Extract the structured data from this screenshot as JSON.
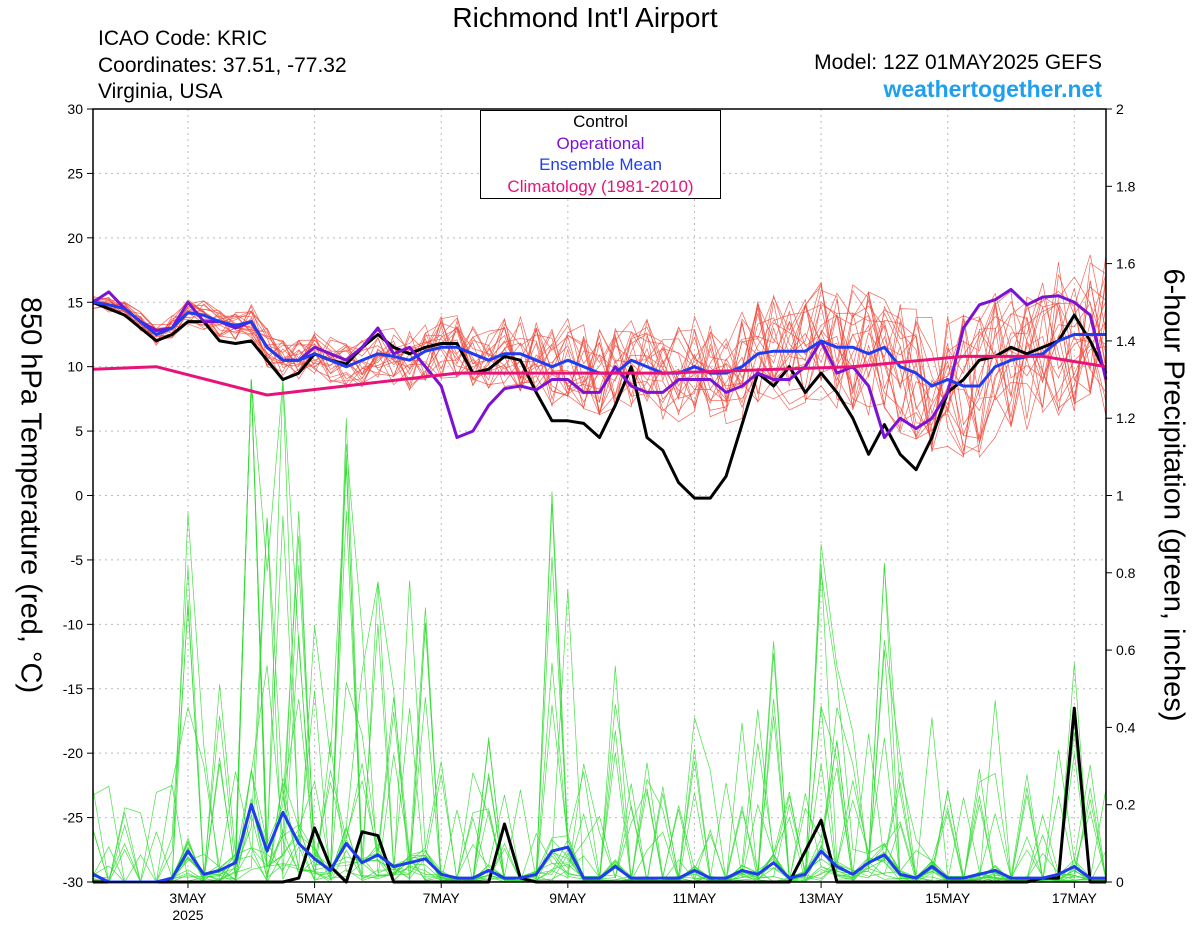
{
  "header": {
    "title": "Richmond Int'l Airport",
    "icao": "ICAO Code: KRIC",
    "coordinates": "Coordinates: 37.51, -77.32",
    "region": "Virginia, USA",
    "model": "Model: 12Z 01MAY2025 GEFS",
    "site": "weathertogether.net"
  },
  "colors": {
    "control": "#000000",
    "operational": "#7b12d4",
    "ensemble_mean": "#1f3cf0",
    "climatology": "#e8137a",
    "members_temp": "#f04a3c",
    "members_precip": "#33dd33",
    "site": "#1ea0ee"
  },
  "chart_data": {
    "type": "line",
    "ylabel_left": "850 hPa Temperature (red, °C)",
    "ylabel_right": "6-hour Precipitation (green, inches)",
    "ylim_left": [
      -30,
      30
    ],
    "ylim_right": [
      0,
      2
    ],
    "yticks_left": [
      30,
      25,
      20,
      15,
      10,
      5,
      0,
      -5,
      -10,
      -15,
      -20,
      -25,
      -30
    ],
    "yticks_right": [
      "2",
      "1.8",
      "1.6",
      "1.4",
      "1.2",
      "1",
      "0.8",
      "0.6",
      "0.4",
      "0.2",
      "0"
    ],
    "xlim_days": [
      1.5,
      17.5
    ],
    "xticks": [
      {
        "day": 3,
        "label": "3MAY",
        "sub": "2025"
      },
      {
        "day": 5,
        "label": "5MAY"
      },
      {
        "day": 7,
        "label": "7MAY"
      },
      {
        "day": 9,
        "label": "9MAY"
      },
      {
        "day": 11,
        "label": "11MAY"
      },
      {
        "day": 13,
        "label": "13MAY"
      },
      {
        "day": 15,
        "label": "15MAY"
      },
      {
        "day": 17,
        "label": "17MAY"
      }
    ],
    "grid": true,
    "legend_position": "top-center",
    "legend": [
      "Control",
      "Operational",
      "Ensemble Mean",
      "Climatology (1981-2010)"
    ],
    "temperature_series": [
      {
        "name": "Control",
        "x": [
          1.5,
          1.75,
          2,
          2.25,
          2.5,
          2.75,
          3,
          3.25,
          3.5,
          3.75,
          4,
          4.25,
          4.5,
          4.75,
          5,
          5.25,
          5.5,
          5.75,
          6,
          6.25,
          6.5,
          6.75,
          7,
          7.25,
          7.5,
          7.75,
          8,
          8.25,
          8.5,
          8.75,
          9,
          9.25,
          9.5,
          9.75,
          10,
          10.25,
          10.5,
          10.75,
          11,
          11.25,
          11.5,
          11.75,
          12,
          12.25,
          12.5,
          12.75,
          13,
          13.25,
          13.5,
          13.75,
          14,
          14.25,
          14.5,
          14.75,
          15,
          15.25,
          15.5,
          15.75,
          16,
          16.25,
          16.5,
          16.75,
          17,
          17.25,
          17.5
        ],
        "y": [
          15,
          14.5,
          14,
          13,
          12,
          12.5,
          13.5,
          13.5,
          12,
          11.8,
          12,
          10.5,
          9,
          9.5,
          11,
          10.5,
          10.2,
          11.5,
          12.5,
          11.5,
          11,
          11.5,
          11.8,
          11.8,
          9.5,
          9.8,
          10.8,
          10.5,
          8,
          5.8,
          5.8,
          5.6,
          4.5,
          7,
          10,
          4.5,
          3.5,
          1,
          -0.2,
          -0.2,
          1.5,
          5.5,
          9.5,
          8.5,
          10,
          8,
          9.5,
          8,
          6,
          3.2,
          5.5,
          3.2,
          2,
          4.5,
          8,
          9,
          10.5,
          10.8,
          11.5,
          11,
          11.5,
          12,
          14,
          12,
          9.5
        ]
      },
      {
        "name": "Operational",
        "x": [
          1.5,
          1.75,
          2,
          2.25,
          2.5,
          2.75,
          3,
          3.25,
          3.5,
          3.75,
          4,
          4.25,
          4.5,
          4.75,
          5,
          5.25,
          5.5,
          5.75,
          6,
          6.25,
          6.5,
          6.75,
          7,
          7.25,
          7.5,
          7.75,
          8,
          8.25,
          8.5,
          8.75,
          9,
          9.25,
          9.5,
          9.75,
          10,
          10.25,
          10.5,
          10.75,
          11,
          11.25,
          11.5,
          11.75,
          12,
          12.25,
          12.5,
          12.75,
          13,
          13.25,
          13.5,
          13.75,
          14,
          14.25,
          14.5,
          14.75,
          15,
          15.25,
          15.5,
          15.75,
          16,
          16.25,
          16.5,
          16.75,
          17,
          17.25,
          17.5
        ],
        "y": [
          15,
          15.8,
          14.5,
          13.5,
          12.8,
          13,
          15,
          13.5,
          13.5,
          13,
          13.5,
          11.5,
          10.5,
          10.5,
          11.5,
          11,
          10.5,
          11.5,
          13,
          11,
          11.5,
          10,
          8.5,
          4.5,
          5,
          7,
          8.3,
          8.5,
          8.2,
          9,
          9,
          8,
          8,
          10,
          8.5,
          8,
          8,
          9,
          9,
          9,
          8,
          8.5,
          9.5,
          9,
          9,
          10,
          12,
          9.5,
          10,
          8.5,
          4.5,
          6,
          5.2,
          6,
          8,
          13,
          14.8,
          15.2,
          16,
          14.8,
          15.4,
          15.5,
          15,
          14,
          9
        ]
      },
      {
        "name": "Ensemble Mean",
        "x": [
          1.5,
          1.75,
          2,
          2.25,
          2.5,
          2.75,
          3,
          3.25,
          3.5,
          3.75,
          4,
          4.25,
          4.5,
          4.75,
          5,
          5.25,
          5.5,
          5.75,
          6,
          6.25,
          6.5,
          6.75,
          7,
          7.25,
          7.5,
          7.75,
          8,
          8.25,
          8.5,
          8.75,
          9,
          9.25,
          9.5,
          9.75,
          10,
          10.25,
          10.5,
          10.75,
          11,
          11.25,
          11.5,
          11.75,
          12,
          12.25,
          12.5,
          12.75,
          13,
          13.25,
          13.5,
          13.75,
          14,
          14.25,
          14.5,
          14.75,
          15,
          15.25,
          15.5,
          15.75,
          16,
          16.25,
          16.5,
          16.75,
          17,
          17.25,
          17.5
        ],
        "y": [
          15,
          14.8,
          14.5,
          13.5,
          12.5,
          13,
          14.2,
          14,
          13.5,
          13.2,
          13.5,
          11.5,
          10.5,
          10.5,
          11,
          10.5,
          10,
          10.5,
          11,
          10.8,
          10.5,
          11.2,
          11.5,
          11.5,
          11,
          10.5,
          11,
          11,
          10.5,
          10,
          10.5,
          10,
          9.5,
          9.5,
          10.5,
          10,
          9.5,
          9.5,
          10,
          9.5,
          9.5,
          10,
          11,
          11.2,
          11.2,
          11.2,
          12,
          11.5,
          11.5,
          11,
          11.5,
          10,
          9.5,
          8.5,
          9,
          8.5,
          8.5,
          10,
          10.5,
          10.8,
          11,
          12,
          12.5,
          12.5,
          12.5
        ]
      },
      {
        "name": "Climatology (1981-2010)",
        "x": [
          1.5,
          2.5,
          4.25,
          7.25,
          10.5,
          13.5,
          15.25,
          16.5,
          17.5
        ],
        "y": [
          9.8,
          10,
          7.8,
          9.5,
          9.5,
          10,
          10.8,
          10.8,
          10
        ]
      }
    ],
    "precipitation_series": [
      {
        "name": "Control",
        "x": [
          1.5,
          1.75,
          2,
          2.25,
          2.5,
          2.75,
          3,
          3.25,
          3.5,
          3.75,
          4,
          4.25,
          4.5,
          4.75,
          5,
          5.25,
          5.5,
          5.75,
          6,
          6.25,
          6.5,
          6.75,
          7,
          7.25,
          7.5,
          7.75,
          8,
          8.25,
          8.5,
          8.75,
          9,
          9.25,
          9.5,
          9.75,
          10,
          10.25,
          10.5,
          10.75,
          11,
          11.25,
          11.5,
          11.75,
          12,
          12.25,
          12.5,
          12.75,
          13,
          13.25,
          13.5,
          13.75,
          14,
          14.25,
          14.5,
          14.75,
          15,
          15.25,
          15.5,
          15.75,
          16,
          16.25,
          16.5,
          16.75,
          17,
          17.25,
          17.5
        ],
        "y": [
          0,
          0,
          0,
          0,
          0,
          0,
          0,
          0,
          0,
          0,
          0,
          0,
          0,
          0.01,
          0.14,
          0.04,
          0,
          0.13,
          0.12,
          0,
          0,
          0,
          0,
          0,
          0,
          0,
          0.15,
          0.01,
          0,
          0,
          0,
          0,
          0,
          0,
          0,
          0,
          0,
          0,
          0,
          0,
          0,
          0,
          0,
          0,
          0,
          0.08,
          0.16,
          0,
          0,
          0,
          0,
          0,
          0,
          0,
          0,
          0,
          0,
          0,
          0,
          0,
          0.01,
          0.01,
          0.45,
          0,
          0
        ]
      },
      {
        "name": "Ensemble Mean",
        "x": [
          1.5,
          1.75,
          2,
          2.25,
          2.5,
          2.75,
          3,
          3.25,
          3.5,
          3.75,
          4,
          4.25,
          4.5,
          4.75,
          5,
          5.25,
          5.5,
          5.75,
          6,
          6.25,
          6.5,
          6.75,
          7,
          7.25,
          7.5,
          7.75,
          8,
          8.25,
          8.5,
          8.75,
          9,
          9.25,
          9.5,
          9.75,
          10,
          10.25,
          10.5,
          10.75,
          11,
          11.25,
          11.5,
          11.75,
          12,
          12.25,
          12.5,
          12.75,
          13,
          13.25,
          13.5,
          13.75,
          14,
          14.25,
          14.5,
          14.75,
          15,
          15.25,
          15.5,
          15.75,
          16,
          16.25,
          16.5,
          16.75,
          17,
          17.25,
          17.5
        ],
        "y": [
          0.02,
          0,
          0,
          0,
          0,
          0.01,
          0.08,
          0.02,
          0.03,
          0.05,
          0.2,
          0.08,
          0.18,
          0.1,
          0.06,
          0.03,
          0.1,
          0.05,
          0.07,
          0.04,
          0.05,
          0.06,
          0.02,
          0.01,
          0.01,
          0.03,
          0.01,
          0.01,
          0.02,
          0.08,
          0.09,
          0.01,
          0.01,
          0.04,
          0.01,
          0.01,
          0.01,
          0.01,
          0.03,
          0.01,
          0.01,
          0.03,
          0.02,
          0.05,
          0.01,
          0.02,
          0.08,
          0.04,
          0.02,
          0.05,
          0.07,
          0.02,
          0.01,
          0.04,
          0.01,
          0.01,
          0.02,
          0.03,
          0.01,
          0.01,
          0.01,
          0.02,
          0.04,
          0.01,
          0.01
        ]
      }
    ]
  }
}
